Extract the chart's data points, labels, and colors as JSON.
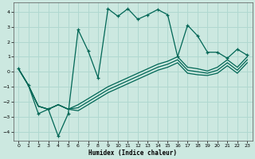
{
  "xlabel": "Humidex (Indice chaleur)",
  "bg_color": "#cce8e0",
  "grid_color": "#b0d8d0",
  "line_color": "#006655",
  "xlim": [
    -0.5,
    23.5
  ],
  "ylim": [
    -4.6,
    4.6
  ],
  "yticks": [
    -4,
    -3,
    -2,
    -1,
    0,
    1,
    2,
    3,
    4
  ],
  "xticks": [
    0,
    1,
    2,
    3,
    4,
    5,
    6,
    7,
    8,
    9,
    10,
    11,
    12,
    13,
    14,
    15,
    16,
    17,
    18,
    19,
    20,
    21,
    22,
    23
  ],
  "main_x": [
    0,
    1,
    2,
    3,
    4,
    5,
    6,
    7,
    8,
    9,
    10,
    11,
    12,
    13,
    14,
    15,
    16,
    17,
    18,
    19,
    20,
    21,
    22,
    23
  ],
  "main_y": [
    0.2,
    -0.9,
    -2.8,
    -2.5,
    -4.3,
    -2.8,
    2.8,
    1.4,
    -0.4,
    4.2,
    3.7,
    4.2,
    3.5,
    3.8,
    4.15,
    3.8,
    1.0,
    3.1,
    2.4,
    1.3,
    1.3,
    0.9,
    1.5,
    1.1
  ],
  "line2_x": [
    0,
    1,
    2,
    3,
    4,
    5,
    6,
    7,
    8,
    9,
    10,
    11,
    12,
    13,
    14,
    15,
    16,
    17,
    18,
    19,
    20,
    21,
    22,
    23
  ],
  "line2_y": [
    0.2,
    -0.9,
    -2.3,
    -2.5,
    -2.2,
    -2.5,
    -2.2,
    -1.8,
    -1.4,
    -1.0,
    -0.7,
    -0.4,
    -0.1,
    0.2,
    0.5,
    0.7,
    1.0,
    0.3,
    0.2,
    0.05,
    0.3,
    0.8,
    0.3,
    1.0
  ],
  "line3_x": [
    0,
    1,
    2,
    3,
    4,
    5,
    6,
    7,
    8,
    9,
    10,
    11,
    12,
    13,
    14,
    15,
    16,
    17,
    18,
    19,
    20,
    21,
    22,
    23
  ],
  "line3_y": [
    0.2,
    -0.9,
    -2.3,
    -2.5,
    -2.2,
    -2.5,
    -2.4,
    -2.0,
    -1.6,
    -1.2,
    -0.9,
    -0.6,
    -0.3,
    0.0,
    0.3,
    0.5,
    0.8,
    0.1,
    0.0,
    -0.1,
    0.1,
    0.6,
    0.1,
    0.8
  ],
  "line4_x": [
    0,
    1,
    2,
    3,
    4,
    5,
    6,
    7,
    8,
    9,
    10,
    11,
    12,
    13,
    14,
    15,
    16,
    17,
    18,
    19,
    20,
    21,
    22,
    23
  ],
  "line4_y": [
    0.2,
    -0.9,
    -2.3,
    -2.5,
    -2.2,
    -2.5,
    -2.6,
    -2.2,
    -1.8,
    -1.4,
    -1.1,
    -0.8,
    -0.5,
    -0.2,
    0.1,
    0.3,
    0.6,
    -0.1,
    -0.2,
    -0.25,
    -0.1,
    0.4,
    -0.1,
    0.6
  ]
}
